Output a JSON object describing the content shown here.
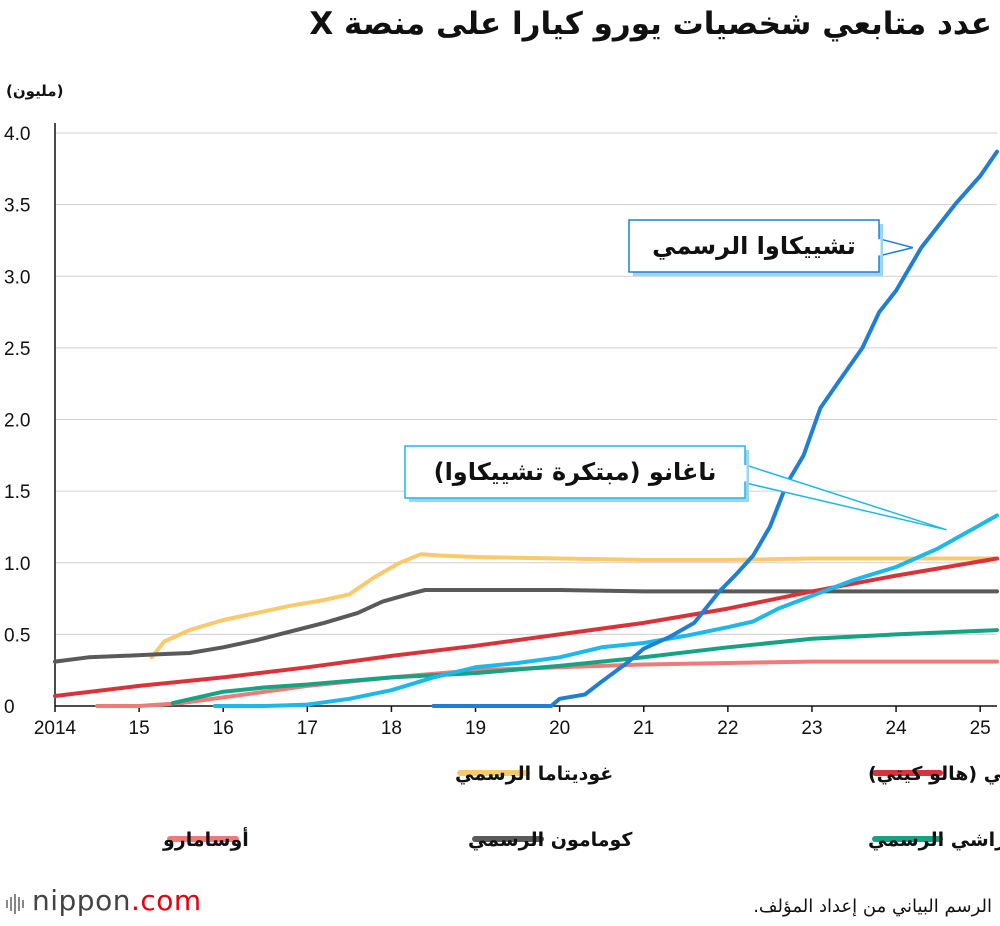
{
  "header": {
    "title": "عدد متابعي شخصيات يورو كيارا  على منصة X",
    "unit": "(مليون)"
  },
  "footer": {
    "source": "الرسم البياني من إعداد المؤلف.",
    "logo_name": "nippon",
    "logo_domain": ".com"
  },
  "chart_data": {
    "type": "line",
    "xlim": [
      2014,
      2025.2
    ],
    "ylim": [
      0,
      4.0
    ],
    "x_ticks": [
      {
        "value": 2014,
        "label": "2014"
      },
      {
        "value": 2015,
        "label": "15"
      },
      {
        "value": 2016,
        "label": "16"
      },
      {
        "value": 2017,
        "label": "17"
      },
      {
        "value": 2018,
        "label": "18"
      },
      {
        "value": 2019,
        "label": "19"
      },
      {
        "value": 2020,
        "label": "20"
      },
      {
        "value": 2021,
        "label": "21"
      },
      {
        "value": 2022,
        "label": "22"
      },
      {
        "value": 2023,
        "label": "23"
      },
      {
        "value": 2024,
        "label": "24"
      },
      {
        "value": 2025,
        "label": "25"
      }
    ],
    "y_ticks": [
      {
        "value": 0,
        "label": "0"
      },
      {
        "value": 0.5,
        "label": "0.5"
      },
      {
        "value": 1.0,
        "label": "1.0"
      },
      {
        "value": 1.5,
        "label": "1.5"
      },
      {
        "value": 2.0,
        "label": "2.0"
      },
      {
        "value": 2.5,
        "label": "2.5"
      },
      {
        "value": 3.0,
        "label": "3.0"
      },
      {
        "value": 3.5,
        "label": "3.5"
      },
      {
        "value": 4.0,
        "label": "4.0"
      }
    ],
    "grid": true,
    "series": [
      {
        "key": "gudetama",
        "name": "غوديتاما الرسمي",
        "color": "#f9c96b",
        "points": [
          [
            2015.15,
            0.34
          ],
          [
            2015.3,
            0.45
          ],
          [
            2015.6,
            0.53
          ],
          [
            2016.0,
            0.6
          ],
          [
            2016.4,
            0.65
          ],
          [
            2016.8,
            0.7
          ],
          [
            2017.2,
            0.74
          ],
          [
            2017.5,
            0.78
          ],
          [
            2017.8,
            0.9
          ],
          [
            2018.1,
            1.0
          ],
          [
            2018.35,
            1.06
          ],
          [
            2018.6,
            1.05
          ],
          [
            2019.0,
            1.04
          ],
          [
            2020.0,
            1.03
          ],
          [
            2021.0,
            1.02
          ],
          [
            2022.0,
            1.02
          ],
          [
            2023.0,
            1.03
          ],
          [
            2024.0,
            1.03
          ],
          [
            2025.2,
            1.03
          ]
        ]
      },
      {
        "key": "kuromi",
        "name": "كومامون الرسمي",
        "color": "#5a5a5a",
        "points": [
          [
            2014.0,
            0.31
          ],
          [
            2014.4,
            0.34
          ],
          [
            2014.8,
            0.35
          ],
          [
            2015.2,
            0.36
          ],
          [
            2015.6,
            0.37
          ],
          [
            2016.0,
            0.41
          ],
          [
            2016.4,
            0.46
          ],
          [
            2016.8,
            0.52
          ],
          [
            2017.2,
            0.58
          ],
          [
            2017.6,
            0.65
          ],
          [
            2017.9,
            0.73
          ],
          [
            2018.2,
            0.78
          ],
          [
            2018.4,
            0.81
          ],
          [
            2019.0,
            0.81
          ],
          [
            2020.0,
            0.81
          ],
          [
            2021.0,
            0.8
          ],
          [
            2022.0,
            0.8
          ],
          [
            2023.0,
            0.8
          ],
          [
            2024.0,
            0.8
          ],
          [
            2025.2,
            0.8
          ]
        ]
      },
      {
        "key": "sanrio",
        "name": "سانريو الرسمي (هالو كيتي)",
        "color": "#d9333a",
        "points": [
          [
            2014.0,
            0.07
          ],
          [
            2015.0,
            0.14
          ],
          [
            2016.0,
            0.2
          ],
          [
            2017.0,
            0.27
          ],
          [
            2018.0,
            0.35
          ],
          [
            2019.0,
            0.42
          ],
          [
            2020.0,
            0.5
          ],
          [
            2021.0,
            0.58
          ],
          [
            2022.0,
            0.68
          ],
          [
            2023.0,
            0.8
          ],
          [
            2024.0,
            0.91
          ],
          [
            2025.2,
            1.03
          ]
        ]
      },
      {
        "key": "osamaru",
        "name": "أوسامارو",
        "color": "#f07a78",
        "points": [
          [
            2014.5,
            0.0
          ],
          [
            2015.0,
            0.0
          ],
          [
            2015.5,
            0.02
          ],
          [
            2016.0,
            0.06
          ],
          [
            2016.5,
            0.1
          ],
          [
            2017.0,
            0.14
          ],
          [
            2018.0,
            0.2
          ],
          [
            2019.0,
            0.25
          ],
          [
            2020.0,
            0.27
          ],
          [
            2021.0,
            0.29
          ],
          [
            2022.0,
            0.3
          ],
          [
            2023.0,
            0.31
          ],
          [
            2024.0,
            0.31
          ],
          [
            2025.2,
            0.31
          ]
        ]
      },
      {
        "key": "sumikko",
        "name": "سوميكّو غوراشي الرسمي",
        "color": "#15a384",
        "points": [
          [
            2015.4,
            0.02
          ],
          [
            2016.0,
            0.1
          ],
          [
            2016.5,
            0.13
          ],
          [
            2017.0,
            0.15
          ],
          [
            2018.0,
            0.2
          ],
          [
            2019.0,
            0.23
          ],
          [
            2020.0,
            0.28
          ],
          [
            2021.0,
            0.34
          ],
          [
            2022.0,
            0.41
          ],
          [
            2023.0,
            0.47
          ],
          [
            2024.0,
            0.5
          ],
          [
            2025.2,
            0.53
          ]
        ]
      },
      {
        "key": "nagano",
        "name": "ناغانو (مبتكرة تشييكاوا)",
        "color": "#1cb8ea",
        "points": [
          [
            2015.9,
            0.0
          ],
          [
            2016.5,
            0.0
          ],
          [
            2017.0,
            0.01
          ],
          [
            2017.5,
            0.05
          ],
          [
            2018.0,
            0.11
          ],
          [
            2018.5,
            0.2
          ],
          [
            2019.0,
            0.27
          ],
          [
            2019.5,
            0.3
          ],
          [
            2020.0,
            0.34
          ],
          [
            2020.5,
            0.41
          ],
          [
            2021.0,
            0.44
          ],
          [
            2021.5,
            0.49
          ],
          [
            2022.0,
            0.55
          ],
          [
            2022.3,
            0.59
          ],
          [
            2022.6,
            0.68
          ],
          [
            2023.0,
            0.77
          ],
          [
            2023.5,
            0.88
          ],
          [
            2024.0,
            0.97
          ],
          [
            2024.5,
            1.1
          ],
          [
            2025.2,
            1.33
          ]
        ]
      },
      {
        "key": "chiikawa",
        "name": "تشييكاوا الرسمي",
        "color": "#1f7fd4",
        "points": [
          [
            2018.5,
            0.0
          ],
          [
            2019.0,
            0.0
          ],
          [
            2019.9,
            0.0
          ],
          [
            2020.0,
            0.05
          ],
          [
            2020.3,
            0.08
          ],
          [
            2020.5,
            0.17
          ],
          [
            2020.8,
            0.3
          ],
          [
            2021.0,
            0.4
          ],
          [
            2021.3,
            0.48
          ],
          [
            2021.6,
            0.58
          ],
          [
            2021.9,
            0.8
          ],
          [
            2022.1,
            0.92
          ],
          [
            2022.3,
            1.05
          ],
          [
            2022.5,
            1.25
          ],
          [
            2022.7,
            1.55
          ],
          [
            2022.9,
            1.75
          ],
          [
            2023.1,
            2.08
          ],
          [
            2023.3,
            2.25
          ],
          [
            2023.6,
            2.5
          ],
          [
            2023.8,
            2.75
          ],
          [
            2024.0,
            2.9
          ],
          [
            2024.3,
            3.2
          ],
          [
            2024.7,
            3.5
          ],
          [
            2025.0,
            3.7
          ],
          [
            2025.2,
            3.87
          ]
        ]
      }
    ],
    "callouts": [
      {
        "series": "chiikawa",
        "text": "تشييكاوا الرسمي",
        "anchor": [
          2024.2,
          3.2
        ]
      },
      {
        "series": "nagano",
        "text": "ناغانو (مبتكرة تشييكاوا)",
        "anchor": [
          2024.6,
          1.23
        ]
      }
    ],
    "legend": [
      {
        "series": "gudetama",
        "text": "غوديتاما الرسمي"
      },
      {
        "series": "sanrio",
        "text": "سانريو الرسمي (هالو كيتي)"
      },
      {
        "series": "osamaru",
        "text": "أوسامارو"
      },
      {
        "series": "kuromi",
        "text": "كومامون الرسمي"
      },
      {
        "series": "sumikko",
        "text": "سوميكّو غوراشي الرسمي"
      }
    ]
  }
}
